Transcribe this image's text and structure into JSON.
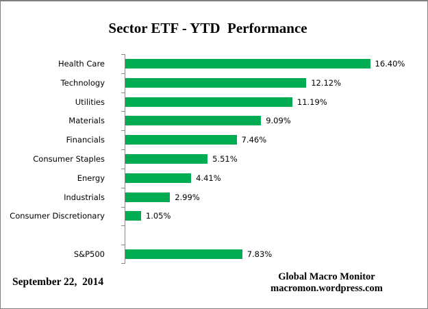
{
  "title": "Sector ETF - YTD  Performance",
  "footer": {
    "date": "September 22,  2014",
    "source_line1": "Global Macro Monitor",
    "source_line2": "macromon.wordpress.com"
  },
  "colors": {
    "bar": "#00AC51",
    "axis": "#898989",
    "text": "#000000"
  },
  "chart_data": {
    "type": "bar",
    "orientation": "horizontal",
    "title": "Sector ETF - YTD  Performance",
    "xlabel": "",
    "ylabel": "",
    "xlim": [
      0,
      20
    ],
    "grid": false,
    "legend": null,
    "bar_color": "#00AC51",
    "categories": [
      "Health Care",
      "Technology",
      "Utilities",
      "Materials",
      "Financials",
      "Consumer Staples",
      "Energy",
      "Industrials",
      "Consumer Discretionary",
      "",
      "S&P500"
    ],
    "values": [
      16.4,
      12.12,
      11.19,
      9.09,
      7.46,
      5.51,
      4.41,
      2.99,
      1.05,
      null,
      7.83
    ],
    "value_labels": [
      "16.40%",
      "12.12%",
      "11.19%",
      "9.09%",
      "7.46%",
      "5.51%",
      "4.41%",
      "2.99%",
      "1.05%",
      "",
      "7.83%"
    ]
  }
}
